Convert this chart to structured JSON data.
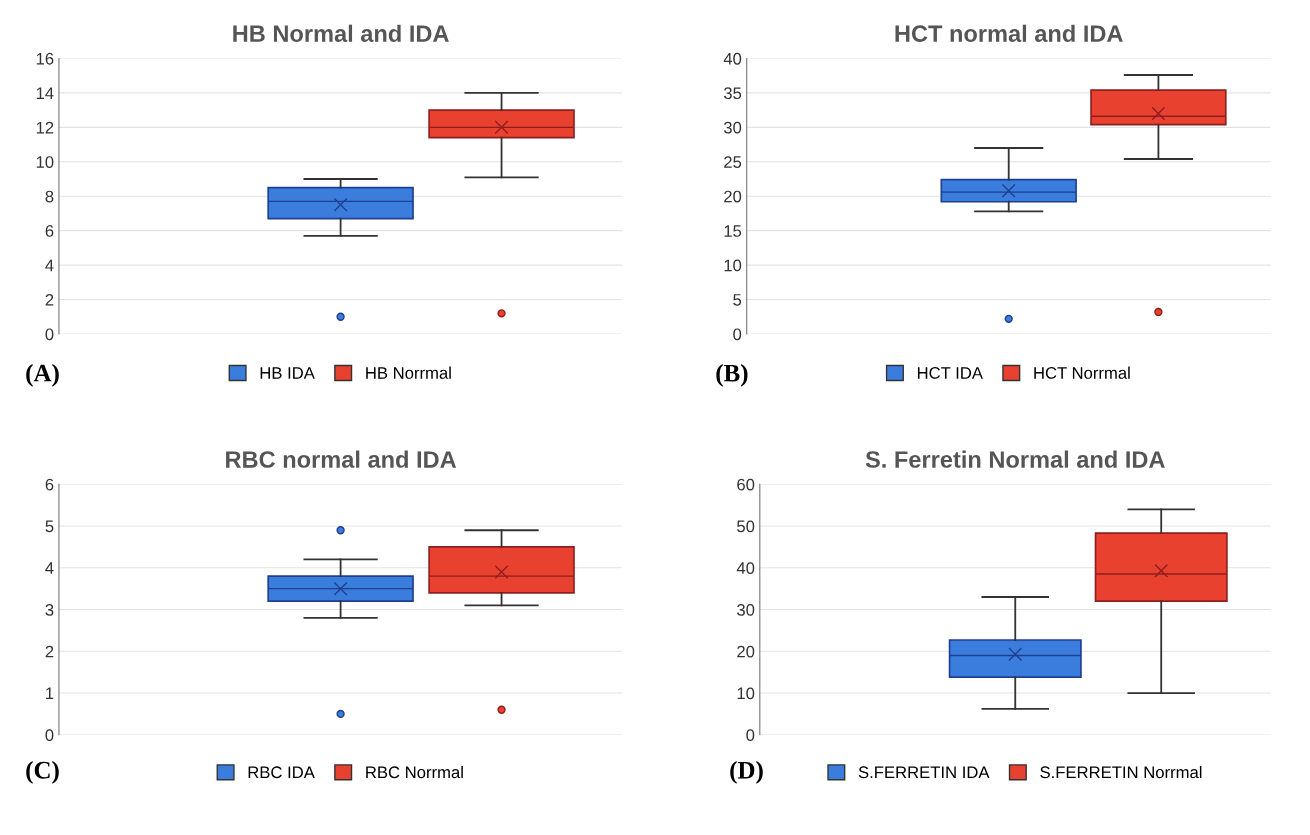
{
  "chart_data": [
    {
      "type": "box",
      "title": "HB Normal and IDA",
      "categories": [
        null
      ],
      "ylim": [
        0,
        16
      ],
      "yticks": [
        0,
        2,
        4,
        6,
        8,
        10,
        12,
        14,
        16
      ],
      "grid": "y",
      "legend": "bottom",
      "marker": "cross",
      "annotations": [
        "(A)"
      ],
      "series": [
        {
          "name": "HB IDA",
          "color": "#3b7ddd",
          "boxes": [
            {
              "low": 5.7,
              "q1": 6.7,
              "median": 7.7,
              "q3": 8.5,
              "high": 9.0,
              "mean": 7.5,
              "outliers": [
                1.0
              ]
            }
          ]
        },
        {
          "name": "HB Norrmal",
          "color": "#e8412f",
          "boxes": [
            {
              "low": 9.1,
              "q1": 11.4,
              "median": 12.0,
              "q3": 13.0,
              "high": 14.0,
              "mean": 12.0,
              "outliers": [
                1.2
              ]
            }
          ]
        }
      ]
    },
    {
      "type": "box",
      "title": "HCT normal and IDA",
      "categories": [
        null
      ],
      "ylim": [
        0,
        40
      ],
      "yticks": [
        0,
        5,
        10,
        15,
        20,
        25,
        30,
        35,
        40
      ],
      "grid": "y",
      "legend": "bottom",
      "marker": "cross",
      "annotations": [
        "(B)"
      ],
      "series": [
        {
          "name": "HCT IDA",
          "color": "#3b7ddd",
          "boxes": [
            {
              "low": 17.8,
              "q1": 19.2,
              "median": 20.6,
              "q3": 22.4,
              "high": 27.0,
              "mean": 20.8,
              "outliers": [
                2.2
              ]
            }
          ]
        },
        {
          "name": "HCT Norrmal",
          "color": "#e8412f",
          "boxes": [
            {
              "low": 25.4,
              "q1": 30.4,
              "median": 31.6,
              "q3": 35.4,
              "high": 37.6,
              "mean": 32.0,
              "outliers": [
                3.2
              ]
            }
          ]
        }
      ]
    },
    {
      "type": "box",
      "title": "RBC normal and IDA",
      "categories": [
        null
      ],
      "ylim": [
        0,
        6
      ],
      "yticks": [
        0,
        1,
        2,
        3,
        4,
        5,
        6
      ],
      "grid": "y",
      "legend": "bottom",
      "marker": "cross",
      "annotations": [
        "(C)"
      ],
      "series": [
        {
          "name": "RBC IDA",
          "color": "#3b7ddd",
          "boxes": [
            {
              "low": 2.8,
              "q1": 3.2,
              "median": 3.5,
              "q3": 3.8,
              "high": 4.2,
              "mean": 3.5,
              "outliers": [
                0.5,
                4.9
              ]
            }
          ]
        },
        {
          "name": "RBC Norrmal",
          "color": "#e8412f",
          "boxes": [
            {
              "low": 3.1,
              "q1": 3.4,
              "median": 3.8,
              "q3": 4.5,
              "high": 4.9,
              "mean": 3.9,
              "outliers": [
                0.6
              ]
            }
          ]
        }
      ]
    },
    {
      "type": "box",
      "title": "S. Ferretin Normal and IDA",
      "categories": [
        null
      ],
      "ylim": [
        0,
        60
      ],
      "yticks": [
        0,
        10,
        20,
        30,
        40,
        50,
        60
      ],
      "grid": "y",
      "legend": "bottom",
      "marker": "cross",
      "annotations": [
        "(D)"
      ],
      "series": [
        {
          "name": "S.FERRETIN IDA",
          "color": "#3b7ddd",
          "boxes": [
            {
              "low": 6.2,
              "q1": 13.8,
              "median": 19.0,
              "q3": 22.7,
              "high": 33.0,
              "mean": 19.3
            }
          ]
        },
        {
          "name": "S.FERRETIN Norrmal",
          "color": "#e8412f",
          "boxes": [
            {
              "low": 10,
              "q1": 32,
              "median": 38.5,
              "q3": 48.3,
              "high": 54,
              "mean": 39.3
            }
          ]
        }
      ]
    }
  ]
}
